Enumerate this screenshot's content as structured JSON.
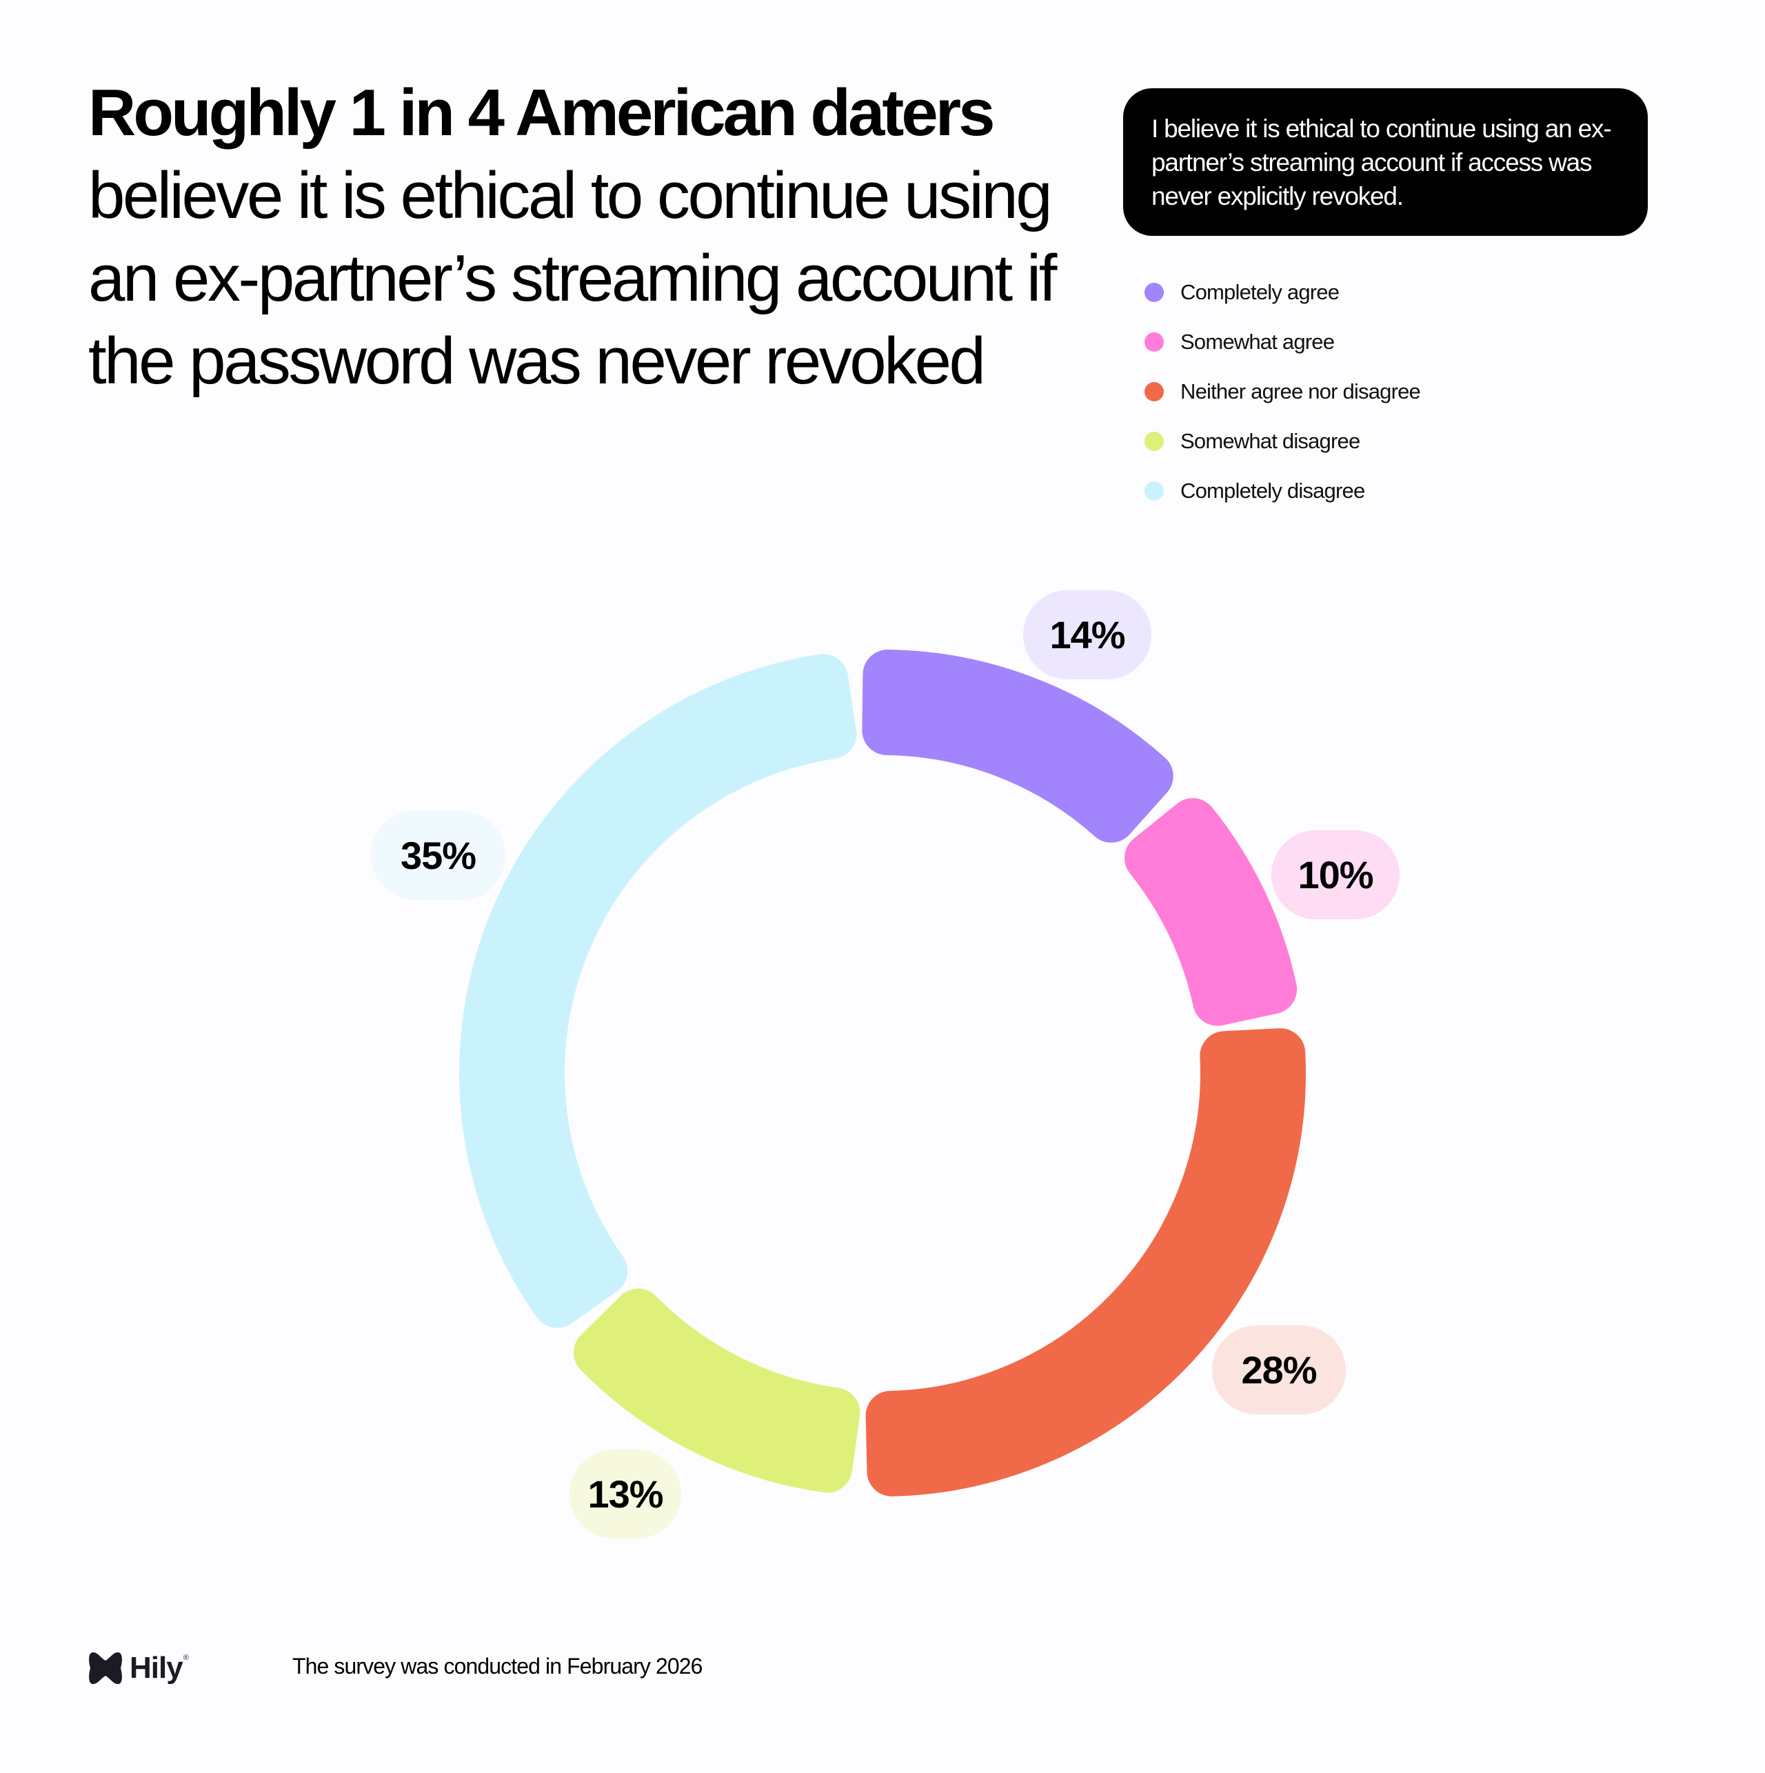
{
  "headline": {
    "bold": "Roughly 1 in 4 American daters",
    "rest": " believe it is ethical to continue using an ex-partner’s streaming account if the password was never revoked"
  },
  "question": "I believe it is ethical to continue using an ex-partner’s streaming account if access was never explicitly revoked.",
  "legend": [
    {
      "label": "Completely agree",
      "color": "#a284fc"
    },
    {
      "label": "Somewhat agree",
      "color": "#ff7dd8"
    },
    {
      "label": "Neither agree nor disagree",
      "color": "#f06a4a"
    },
    {
      "label": "Somewhat disagree",
      "color": "#dff07a"
    },
    {
      "label": "Completely disagree",
      "color": "#caf2fc"
    }
  ],
  "footer": {
    "brand": "Hily",
    "registered": "®",
    "note": "The survey was conducted in February 2026"
  },
  "chart_data": {
    "type": "pie",
    "variant": "donut",
    "title": "I believe it is ethical to continue using an ex-partner’s streaming account if access was never explicitly revoked.",
    "categories": [
      "Completely agree",
      "Somewhat agree",
      "Neither agree nor disagree",
      "Somewhat disagree",
      "Completely disagree"
    ],
    "values": [
      14,
      10,
      28,
      13,
      35
    ],
    "labels": [
      "14%",
      "10%",
      "28%",
      "13%",
      "35%"
    ],
    "colors": [
      "#a284fc",
      "#ff7dd8",
      "#f06a4a",
      "#dff07a",
      "#caf2fc"
    ],
    "label_bg_colors": [
      "#ece6fe",
      "#fddcf4",
      "#fbe3df",
      "#f6f9dd",
      "#eff9fe"
    ],
    "unit": "%",
    "legend_position": "top-right"
  }
}
